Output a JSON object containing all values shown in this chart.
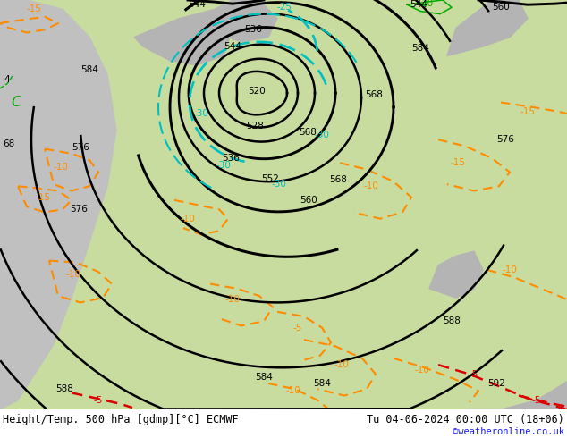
{
  "title_left": "Height/Temp. 500 hPa [gdmp][°C] ECMWF",
  "title_right": "Tu 04-06-2024 00:00 UTC (18+06)",
  "watermark": "©weatheronline.co.uk",
  "bg_green": "#c8dca0",
  "bg_gray": "#b4b4b4",
  "bg_white": "#e8e8e8",
  "ocean_gray": "#c0c0c0",
  "black": "#000000",
  "orange": "#ff8c00",
  "cyan": "#00c0c0",
  "red": "#dd0000",
  "green": "#00aa00",
  "blue_wm": "#1a1aff",
  "lw_geo": 1.8,
  "lw_temp": 1.5,
  "fs_label": 7.5,
  "fs_title": 8.5,
  "fs_wm": 7.5
}
